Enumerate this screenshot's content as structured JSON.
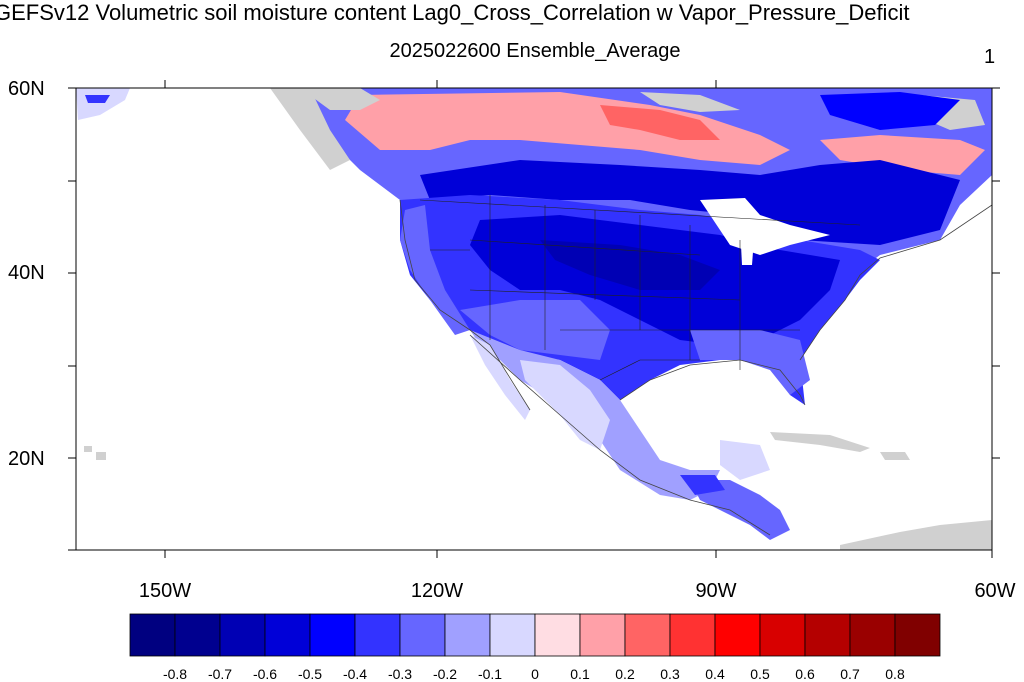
{
  "title": "GEFSv12 Volumetric soil moisture content Lag0_Cross_Correlation w Vapor_Pressure_Deficit",
  "subtitle": "2025022600 Ensemble_Average",
  "panel_number": "1",
  "chart_data": {
    "type": "heatmap",
    "variable": "Lag0 cross-correlation between volumetric soil moisture content and vapor pressure deficit",
    "lat_ticks": [
      "60N",
      "40N",
      "20N"
    ],
    "lon_ticks": [
      "150W",
      "120W",
      "90W",
      "60W"
    ],
    "lat_range": [
      10,
      60
    ],
    "lon_range": [
      -160,
      -60
    ],
    "colorbar": {
      "labels": [
        "-0.8",
        "-0.7",
        "-0.6",
        "-0.5",
        "-0.4",
        "-0.3",
        "-0.2",
        "-0.1",
        "0",
        "0.1",
        "0.2",
        "0.3",
        "0.4",
        "0.5",
        "0.6",
        "0.7",
        "0.8"
      ],
      "colors": [
        "#000080",
        "#00008f",
        "#0000b4",
        "#0000d8",
        "#0000ff",
        "#3333ff",
        "#6666ff",
        "#a0a0ff",
        "#d8d8ff",
        "#ffdde3",
        "#ffa0a8",
        "#ff6464",
        "#ff3232",
        "#ff0000",
        "#d80000",
        "#b40000",
        "#9a0000",
        "#800000"
      ]
    },
    "missing_color": "#d0d0d0"
  }
}
